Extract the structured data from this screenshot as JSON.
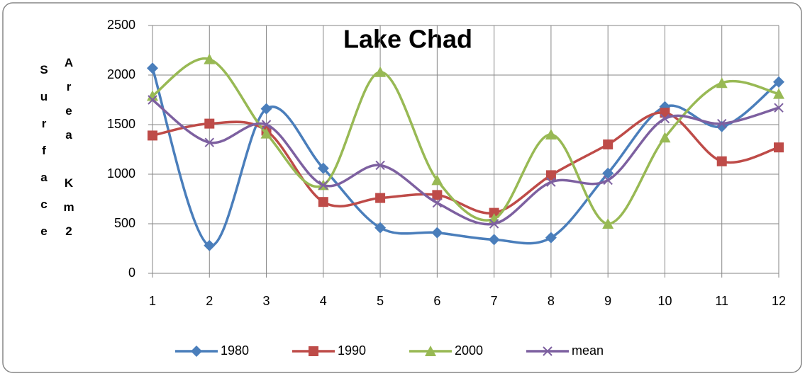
{
  "chart_data": {
    "type": "line",
    "title": "Lake Chad",
    "ylabel": [
      "Surface",
      "Area Km2"
    ],
    "x": [
      1,
      2,
      3,
      4,
      5,
      6,
      7,
      8,
      9,
      10,
      11,
      12
    ],
    "xlim": [
      1,
      12
    ],
    "xticks": [
      1,
      2,
      3,
      4,
      5,
      6,
      7,
      8,
      9,
      10,
      11,
      12
    ],
    "ylim": [
      0,
      2500
    ],
    "yticks": [
      0,
      500,
      1000,
      1500,
      2000,
      2500
    ],
    "grid": true,
    "smooth": true,
    "legend": "bottom",
    "series": [
      {
        "name": "1980",
        "color": "#4a7ebb",
        "marker": "diamond",
        "values": [
          2070,
          280,
          1660,
          1060,
          460,
          410,
          340,
          360,
          1010,
          1680,
          1480,
          1930
        ]
      },
      {
        "name": "1990",
        "color": "#be4b48",
        "marker": "square",
        "values": [
          1390,
          1510,
          1440,
          720,
          760,
          790,
          610,
          990,
          1300,
          1620,
          1130,
          1270
        ]
      },
      {
        "name": "2000",
        "color": "#98b954",
        "marker": "triangle",
        "values": [
          1790,
          2160,
          1410,
          890,
          2030,
          940,
          550,
          1400,
          500,
          1370,
          1920,
          1810
        ]
      },
      {
        "name": "mean",
        "color": "#7d60a0",
        "marker": "x",
        "values": [
          1750,
          1320,
          1500,
          890,
          1090,
          710,
          500,
          920,
          940,
          1560,
          1510,
          1670
        ]
      }
    ]
  }
}
